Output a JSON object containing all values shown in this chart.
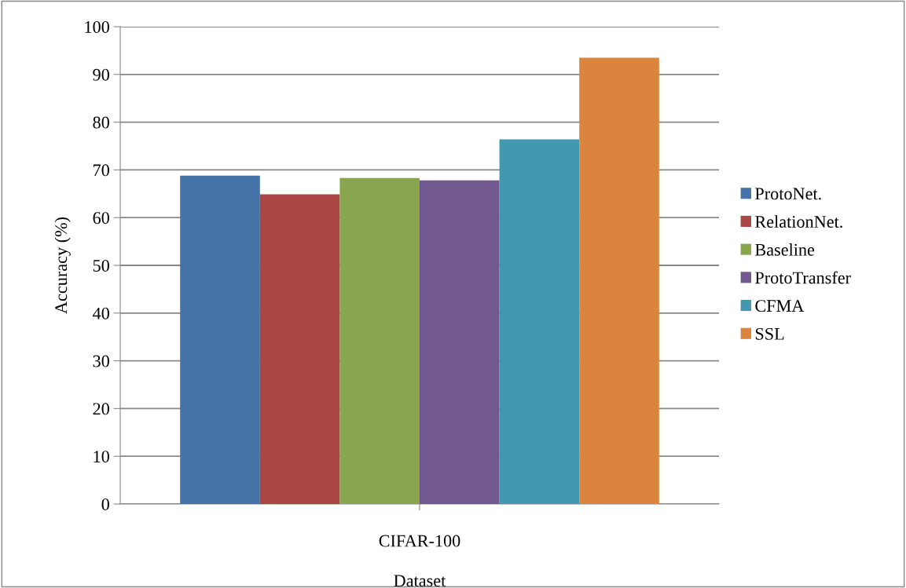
{
  "chart_data": {
    "type": "bar",
    "xlabel": "Dataset",
    "ylabel": "Accuracy (%)",
    "categories": [
      "CIFAR-100"
    ],
    "series": [
      {
        "name": "ProtoNet.",
        "color": "#4572a7",
        "values": [
          68.8
        ]
      },
      {
        "name": "RelationNet.",
        "color": "#aa4643",
        "values": [
          64.9
        ]
      },
      {
        "name": "Baseline",
        "color": "#89a54e",
        "values": [
          68.3
        ]
      },
      {
        "name": "ProtoTransfer",
        "color": "#71588f",
        "values": [
          67.8
        ]
      },
      {
        "name": "CFMA",
        "color": "#4198af",
        "values": [
          76.4
        ]
      },
      {
        "name": "SSL",
        "color": "#db843d",
        "values": [
          93.5
        ]
      }
    ],
    "ylim": [
      0,
      100
    ],
    "yticks": [
      0,
      10,
      20,
      30,
      40,
      50,
      60,
      70,
      80,
      90,
      100
    ],
    "grid": "y",
    "legend": "right"
  }
}
